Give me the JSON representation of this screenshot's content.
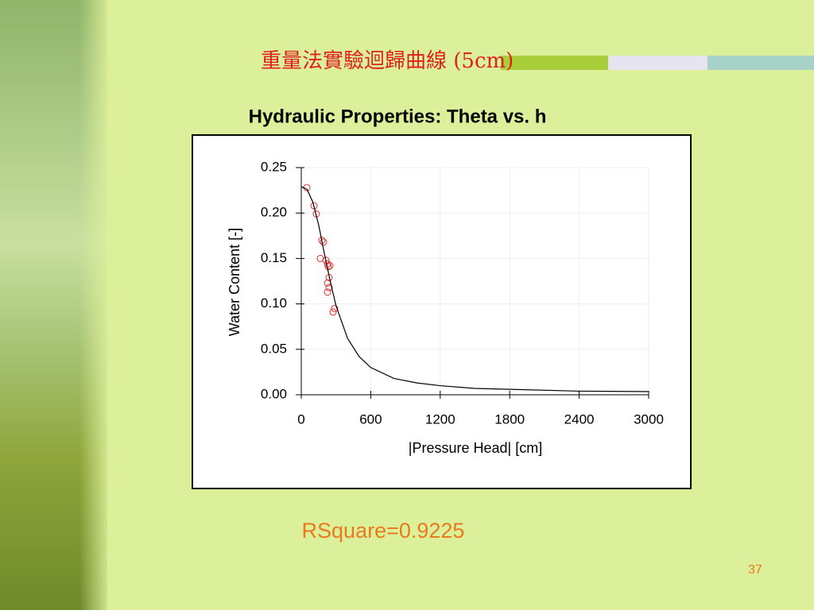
{
  "slide_title": "重量法實驗迴歸曲線 (5cm)",
  "rsquare": "RSquare=0.9225",
  "page_number": "37",
  "chart_data": {
    "type": "scatter",
    "title": "Hydraulic Properties:  Theta vs. h",
    "x_label": "|Pressure Head| [cm]",
    "y_label": "Water Content [-]",
    "xlim": [
      0,
      3000
    ],
    "xticks": [
      0,
      600,
      1200,
      1800,
      2400,
      3000
    ],
    "ylim": [
      0,
      0.25
    ],
    "yticks": [
      {
        "value": 0,
        "label": "0.00"
      },
      {
        "value": 0.05,
        "label": "0.05"
      },
      {
        "value": 0.1,
        "label": "0.10"
      },
      0.15,
      {
        "value": 0.2,
        "label": "0.20"
      },
      0.25
    ],
    "grid": true,
    "series": [
      {
        "type": "scatter",
        "color": "#e03030",
        "x": [
          48,
          110,
          130,
          178,
          192,
          165,
          213,
          227,
          233,
          247,
          240,
          227,
          240,
          227,
          275,
          288
        ],
        "values": [
          0.228,
          0.208,
          0.199,
          0.17,
          0.168,
          0.15,
          0.148,
          0.144,
          0.141,
          0.142,
          0.129,
          0.123,
          0.118,
          0.113,
          0.091,
          0.095
        ]
      },
      {
        "type": "line",
        "color": "#000000",
        "x": [
          0,
          50,
          100,
          150,
          200,
          250,
          300,
          400,
          500,
          600,
          800,
          1000,
          1200,
          1500,
          1800,
          2400,
          3000
        ],
        "values": [
          0.229,
          0.226,
          0.212,
          0.187,
          0.155,
          0.125,
          0.098,
          0.062,
          0.042,
          0.03,
          0.018,
          0.013,
          0.01,
          0.007,
          0.006,
          0.004,
          0.0035
        ]
      }
    ]
  }
}
